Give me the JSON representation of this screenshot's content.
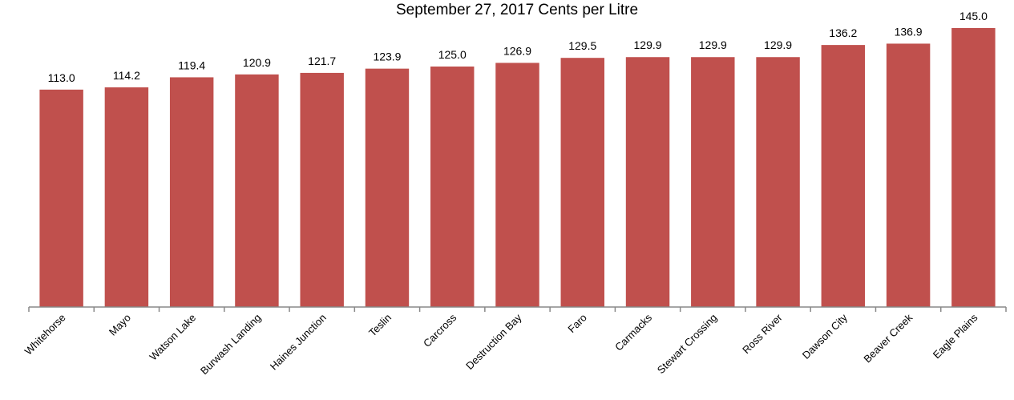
{
  "chart_data": {
    "type": "bar",
    "title": "September 27, 2017 Cents per Litre",
    "categories": [
      "Whitehorse",
      "Mayo",
      "Watson Lake",
      "Burwash Landing",
      "Haines Junction",
      "Teslin",
      "Carcross",
      "Destruction Bay",
      "Faro",
      "Carmacks",
      "Stewart Crossing",
      "Ross River",
      "Dawson City",
      "Beaver Creek",
      "Eagle Plains"
    ],
    "values": [
      113.0,
      114.2,
      119.4,
      120.9,
      121.7,
      123.9,
      125.0,
      126.9,
      129.5,
      129.9,
      129.9,
      129.9,
      136.2,
      136.9,
      145.0
    ],
    "value_labels": [
      "113.0",
      "114.2",
      "119.4",
      "120.9",
      "121.7",
      "123.9",
      "125.0",
      "126.9",
      "129.5",
      "129.9",
      "129.9",
      "129.9",
      "136.2",
      "136.9",
      "145.0"
    ],
    "color": "#c0504d",
    "ylim": [
      0,
      150
    ]
  }
}
